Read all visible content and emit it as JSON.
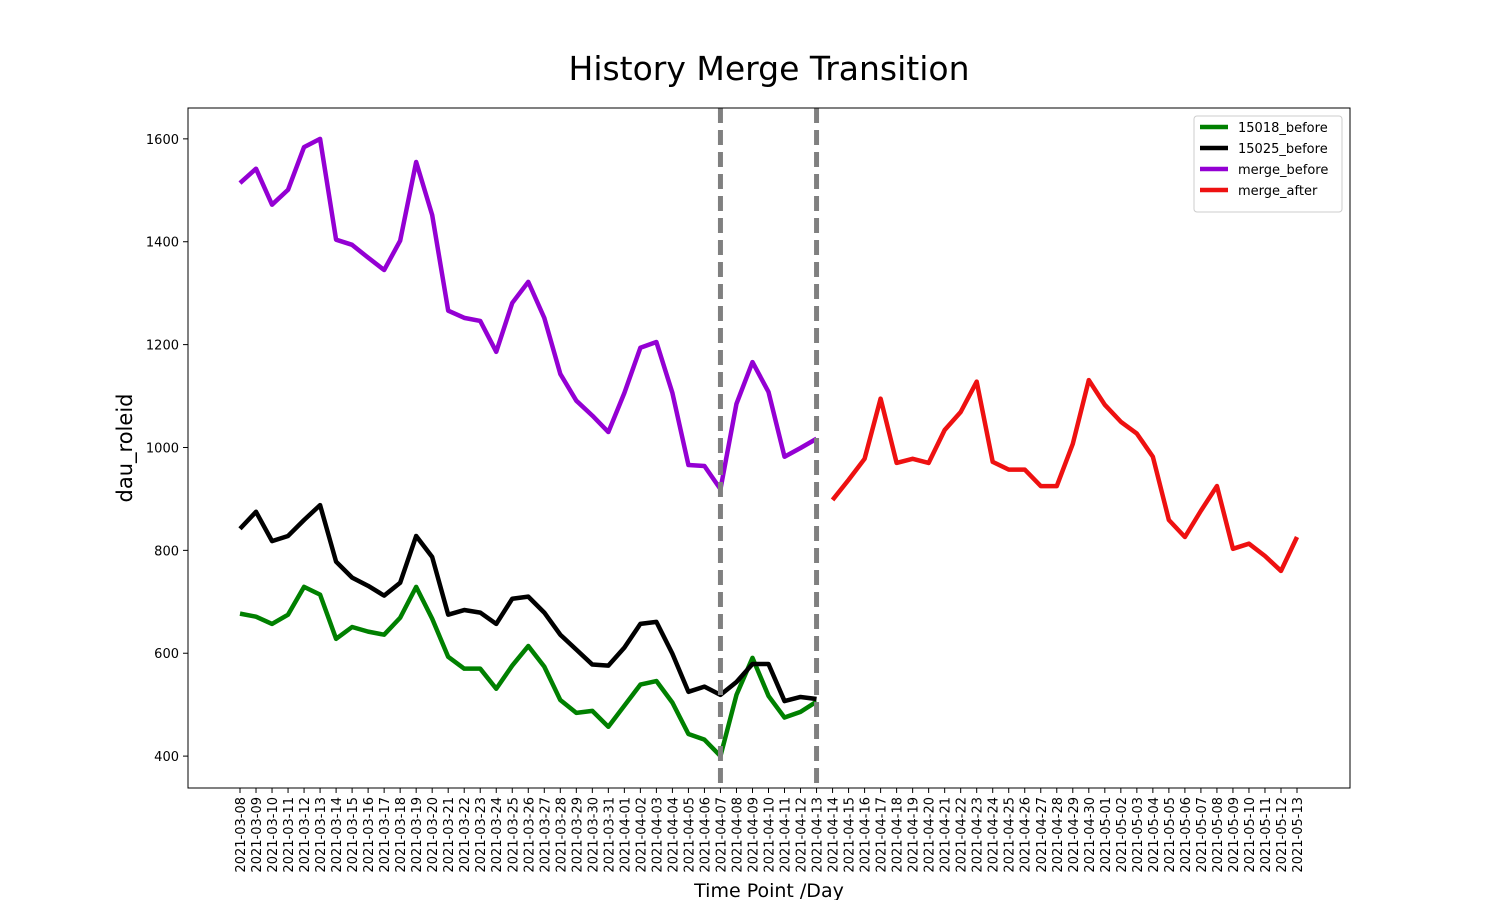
{
  "chart_data": {
    "type": "line",
    "title": "History Merge Transition",
    "xlabel": "Time Point /Day",
    "ylabel": "dau_roleid",
    "categories": [
      "2021-03-08",
      "2021-03-09",
      "2021-03-10",
      "2021-03-11",
      "2021-03-12",
      "2021-03-13",
      "2021-03-14",
      "2021-03-15",
      "2021-03-16",
      "2021-03-17",
      "2021-03-18",
      "2021-03-19",
      "2021-03-20",
      "2021-03-21",
      "2021-03-22",
      "2021-03-23",
      "2021-03-24",
      "2021-03-25",
      "2021-03-26",
      "2021-03-27",
      "2021-03-28",
      "2021-03-29",
      "2021-03-30",
      "2021-03-31",
      "2021-04-01",
      "2021-04-02",
      "2021-04-03",
      "2021-04-04",
      "2021-04-05",
      "2021-04-06",
      "2021-04-07",
      "2021-04-08",
      "2021-04-09",
      "2021-04-10",
      "2021-04-11",
      "2021-04-12",
      "2021-04-13",
      "2021-04-14",
      "2021-04-15",
      "2021-04-16",
      "2021-04-17",
      "2021-04-18",
      "2021-04-19",
      "2021-04-20",
      "2021-04-21",
      "2021-04-22",
      "2021-04-23",
      "2021-04-24",
      "2021-04-25",
      "2021-04-26",
      "2021-04-27",
      "2021-04-28",
      "2021-04-29",
      "2021-04-30",
      "2021-05-01",
      "2021-05-02",
      "2021-05-03",
      "2021-05-04",
      "2021-05-05",
      "2021-05-06",
      "2021-05-07",
      "2021-05-08",
      "2021-05-09",
      "2021-05-10",
      "2021-05-11",
      "2021-05-12",
      "2021-05-13"
    ],
    "series": [
      {
        "name": "15018_before",
        "color": "#008000",
        "values": [
          677,
          671,
          657,
          675,
          729,
          714,
          628,
          651,
          642,
          636,
          669,
          729,
          667,
          593,
          570,
          570,
          531,
          576,
          614,
          574,
          509,
          484,
          488,
          457,
          498,
          539,
          546,
          504,
          443,
          432,
          400,
          519,
          591,
          517,
          475,
          486,
          506,
          null,
          null,
          null,
          null,
          null,
          null,
          null,
          null,
          null,
          null,
          null,
          null,
          null,
          null,
          null,
          null,
          null,
          null,
          null,
          null,
          null,
          null,
          null,
          null,
          null,
          null,
          null,
          null,
          null,
          null
        ]
      },
      {
        "name": "15025_before",
        "color": "#000000",
        "values": [
          842,
          875,
          818,
          828,
          859,
          888,
          778,
          747,
          731,
          712,
          737,
          828,
          787,
          675,
          684,
          679,
          657,
          706,
          710,
          679,
          636,
          607,
          578,
          576,
          611,
          657,
          661,
          599,
          525,
          535,
          519,
          544,
          579,
          579,
          507,
          515,
          511,
          null,
          null,
          null,
          null,
          null,
          null,
          null,
          null,
          null,
          null,
          null,
          null,
          null,
          null,
          null,
          null,
          null,
          null,
          null,
          null,
          null,
          null,
          null,
          null,
          null,
          null,
          null,
          null,
          null,
          null
        ]
      },
      {
        "name": "merge_before",
        "color": "#9400d3",
        "values": [
          1514,
          1542,
          1472,
          1501,
          1584,
          1600,
          1404,
          1394,
          1369,
          1345,
          1402,
          1555,
          1452,
          1266,
          1252,
          1246,
          1186,
          1281,
          1322,
          1252,
          1143,
          1091,
          1062,
          1030,
          1106,
          1194,
          1205,
          1106,
          966,
          964,
          919,
          1085,
          1166,
          1108,
          982,
          999,
          1017,
          null,
          null,
          null,
          null,
          null,
          null,
          null,
          null,
          null,
          null,
          null,
          null,
          null,
          null,
          null,
          null,
          null,
          null,
          null,
          null,
          null,
          null,
          null,
          null,
          null,
          null,
          null,
          null,
          null,
          null
        ]
      },
      {
        "name": "merge_after",
        "color": "#ee1111",
        "values": [
          null,
          null,
          null,
          null,
          null,
          null,
          null,
          null,
          null,
          null,
          null,
          null,
          null,
          null,
          null,
          null,
          null,
          null,
          null,
          null,
          null,
          null,
          null,
          null,
          null,
          null,
          null,
          null,
          null,
          null,
          null,
          null,
          null,
          null,
          null,
          null,
          null,
          898,
          937,
          978,
          1095,
          970,
          978,
          970,
          1034,
          1069,
          1128,
          972,
          957,
          957,
          925,
          925,
          1007,
          1131,
          1083,
          1050,
          1027,
          982,
          859,
          826,
          877,
          925,
          803,
          813,
          789,
          760,
          826
        ]
      }
    ],
    "vlines": [
      "2021-04-07",
      "2021-04-13"
    ],
    "vline_color": "#808080",
    "ylim": [
      338,
      1660
    ],
    "yticks": [
      400,
      600,
      800,
      1000,
      1200,
      1400,
      1600
    ],
    "grid": false,
    "legend": "upper right"
  }
}
